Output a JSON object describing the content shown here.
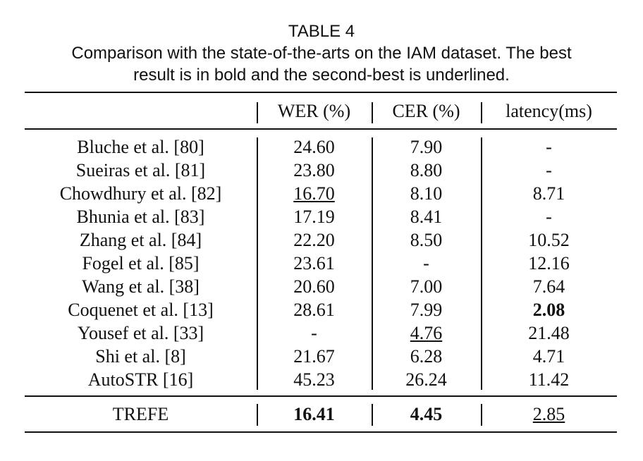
{
  "caption": {
    "label": "TABLE 4",
    "lines": [
      "Comparison with the state-of-the-arts on the IAM dataset. The best",
      "result is in bold and the second-best is underlined."
    ]
  },
  "table": {
    "headers": [
      "WER (%)",
      "CER (%)",
      "latency(ms)"
    ],
    "rows": [
      [
        "Bluche et al. [80]",
        "24.60",
        "7.90",
        "-"
      ],
      [
        "Sueiras et al. [81]",
        "23.80",
        "8.80",
        "-"
      ],
      [
        "Chowdhury et al. [82]",
        "16.70",
        "8.10",
        "8.71"
      ],
      [
        "Bhunia et al. [83]",
        "17.19",
        "8.41",
        "-"
      ],
      [
        "Zhang et al. [84]",
        "22.20",
        "8.50",
        "10.52"
      ],
      [
        "Fogel et al. [85]",
        "23.61",
        "-",
        "12.16"
      ],
      [
        "Wang et al. [38]",
        "20.60",
        "7.00",
        "7.64"
      ],
      [
        "Coquenet et al. [13]",
        "28.61",
        "7.99",
        "2.08"
      ],
      [
        "Yousef et al. [33]",
        "-",
        "4.76",
        "21.48"
      ],
      [
        "Shi et al. [8]",
        "21.67",
        "6.28",
        "4.71"
      ],
      [
        "AutoSTR [16]",
        "45.23",
        "26.24",
        "11.42"
      ]
    ],
    "final_row": [
      "TREFE",
      "16.41",
      "4.45",
      "2.85"
    ]
  }
}
